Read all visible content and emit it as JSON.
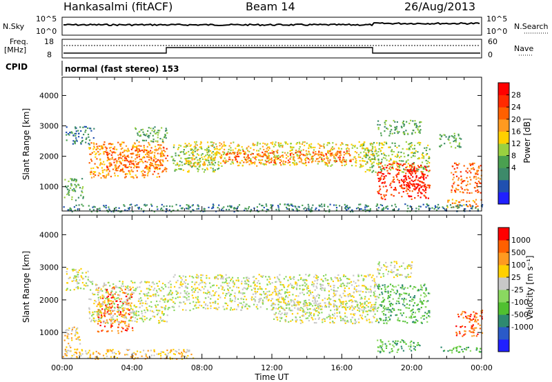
{
  "header": {
    "station": "Hankasalmi (fitACF)",
    "beam": "Beam 14",
    "date": "26/Aug/2013"
  },
  "summary": {
    "nsky_label": "N.Sky",
    "nsearch_label": "N.Search",
    "nsky_ticks": [
      "10^5",
      "10^0"
    ],
    "nsearch_ticks": [
      "10^5",
      "10^0"
    ],
    "freq_label_1": "Freq.",
    "freq_label_2": "[MHz]",
    "freq_ticks": [
      "18",
      "8"
    ],
    "nave_label": "Nave",
    "nave_ticks": [
      "60",
      "0"
    ],
    "cpid_label": "CPID",
    "cpid_text": "normal (fast stereo) 153"
  },
  "chart_data": [
    {
      "type": "heatmap",
      "panel": "power",
      "ylabel": "Slant Range [km]",
      "yticks": [
        1000,
        2000,
        3000,
        4000
      ],
      "ylim": [
        200,
        4600
      ],
      "xlim": [
        0,
        24
      ],
      "xticks": [
        "00:00",
        "04:00",
        "08:00",
        "12:00",
        "16:00",
        "20:00",
        "00:00"
      ],
      "colorbar": {
        "label": "Power [dB]",
        "ticks": [
          "28",
          "24",
          "20",
          "16",
          "12",
          "8",
          "4"
        ],
        "colors": [
          "#2020ff",
          "#2050b0",
          "#3d8a6a",
          "#4aa050",
          "#9ad040",
          "#ffd000",
          "#ff9a20",
          "#ff6000",
          "#ff2a00",
          "#ff0000"
        ]
      },
      "echo_regions": [
        {
          "t0": 0.1,
          "t1": 1.2,
          "r0": 550,
          "r1": 1300,
          "level": 3
        },
        {
          "t0": 0.2,
          "t1": 1.8,
          "r0": 2400,
          "r1": 3000,
          "level": 2
        },
        {
          "t0": 1.5,
          "t1": 5.8,
          "r0": 1300,
          "r1": 2500,
          "level": 6
        },
        {
          "t0": 2.5,
          "t1": 6.0,
          "r0": 1500,
          "r1": 2300,
          "level": 7
        },
        {
          "t0": 4.0,
          "t1": 6.0,
          "r0": 2500,
          "r1": 3000,
          "level": 3
        },
        {
          "t0": 6.2,
          "t1": 9.0,
          "r0": 1500,
          "r1": 2400,
          "level": 4
        },
        {
          "t0": 7.0,
          "t1": 17.8,
          "r0": 1700,
          "r1": 2500,
          "level": 5
        },
        {
          "t0": 9.0,
          "t1": 16.5,
          "r0": 1800,
          "r1": 2200,
          "level": 7
        },
        {
          "t0": 17.0,
          "t1": 21.0,
          "r0": 1500,
          "r1": 2500,
          "level": 4
        },
        {
          "t0": 18.0,
          "t1": 21.0,
          "r0": 600,
          "r1": 1800,
          "level": 8
        },
        {
          "t0": 19.5,
          "t1": 20.8,
          "r0": 900,
          "r1": 1700,
          "level": 9
        },
        {
          "t0": 18.0,
          "t1": 20.5,
          "r0": 2700,
          "r1": 3200,
          "level": 3
        },
        {
          "t0": 21.5,
          "t1": 22.8,
          "r0": 2300,
          "r1": 2800,
          "level": 3
        },
        {
          "t0": 22.2,
          "t1": 24.0,
          "r0": 800,
          "r1": 1800,
          "level": 7
        },
        {
          "t0": 22.0,
          "t1": 24.0,
          "r0": 300,
          "r1": 600,
          "level": 6
        },
        {
          "t0": 0.0,
          "t1": 24.0,
          "r0": 200,
          "r1": 450,
          "level": 2
        }
      ]
    },
    {
      "type": "heatmap",
      "panel": "velocity",
      "ylabel": "Slant Range [km]",
      "yticks": [
        1000,
        2000,
        3000,
        4000
      ],
      "ylim": [
        200,
        4600
      ],
      "xlim": [
        0,
        24
      ],
      "xticks": [
        "00:00",
        "04:00",
        "08:00",
        "12:00",
        "16:00",
        "20:00",
        "00:00"
      ],
      "xlabel": "Time UT",
      "colorbar": {
        "label": "Velocity [m s⁻¹]",
        "ticks": [
          "1000",
          "500",
          "100",
          "25",
          "-25",
          "-100",
          "-500",
          "-1000"
        ],
        "colors": [
          "#2020ff",
          "#2a5ac8",
          "#2e8a70",
          "#50c030",
          "#8ad860",
          "#c8c8c8",
          "#ffd000",
          "#ff9a20",
          "#ff6000",
          "#ff0000"
        ]
      },
      "echo_regions": [
        {
          "t0": 0.2,
          "t1": 1.5,
          "r0": 2300,
          "r1": 3000,
          "level": 5
        },
        {
          "t0": 0.1,
          "t1": 1.0,
          "r0": 300,
          "r1": 1200,
          "level": 6
        },
        {
          "t0": 2.0,
          "t1": 4.0,
          "r0": 1000,
          "r1": 2400,
          "level": 8
        },
        {
          "t0": 1.5,
          "t1": 6.0,
          "r0": 1300,
          "r1": 2600,
          "level": 5
        },
        {
          "t0": 6.0,
          "t1": 18.0,
          "r0": 1700,
          "r1": 2800,
          "level": 5
        },
        {
          "t0": 12.0,
          "t1": 18.0,
          "r0": 1300,
          "r1": 2000,
          "level": 5
        },
        {
          "t0": 18.0,
          "t1": 21.0,
          "r0": 1300,
          "r1": 2500,
          "level": 3
        },
        {
          "t0": 18.0,
          "t1": 20.5,
          "r0": 400,
          "r1": 800,
          "level": 3
        },
        {
          "t0": 18.0,
          "t1": 20.0,
          "r0": 2700,
          "r1": 3200,
          "level": 5
        },
        {
          "t0": 22.5,
          "t1": 24.0,
          "r0": 900,
          "r1": 1700,
          "level": 8
        },
        {
          "t0": 21.5,
          "t1": 24.0,
          "r0": 400,
          "r1": 600,
          "level": 3
        },
        {
          "t0": 0.0,
          "t1": 7.5,
          "r0": 200,
          "r1": 500,
          "level": 6
        }
      ]
    }
  ]
}
